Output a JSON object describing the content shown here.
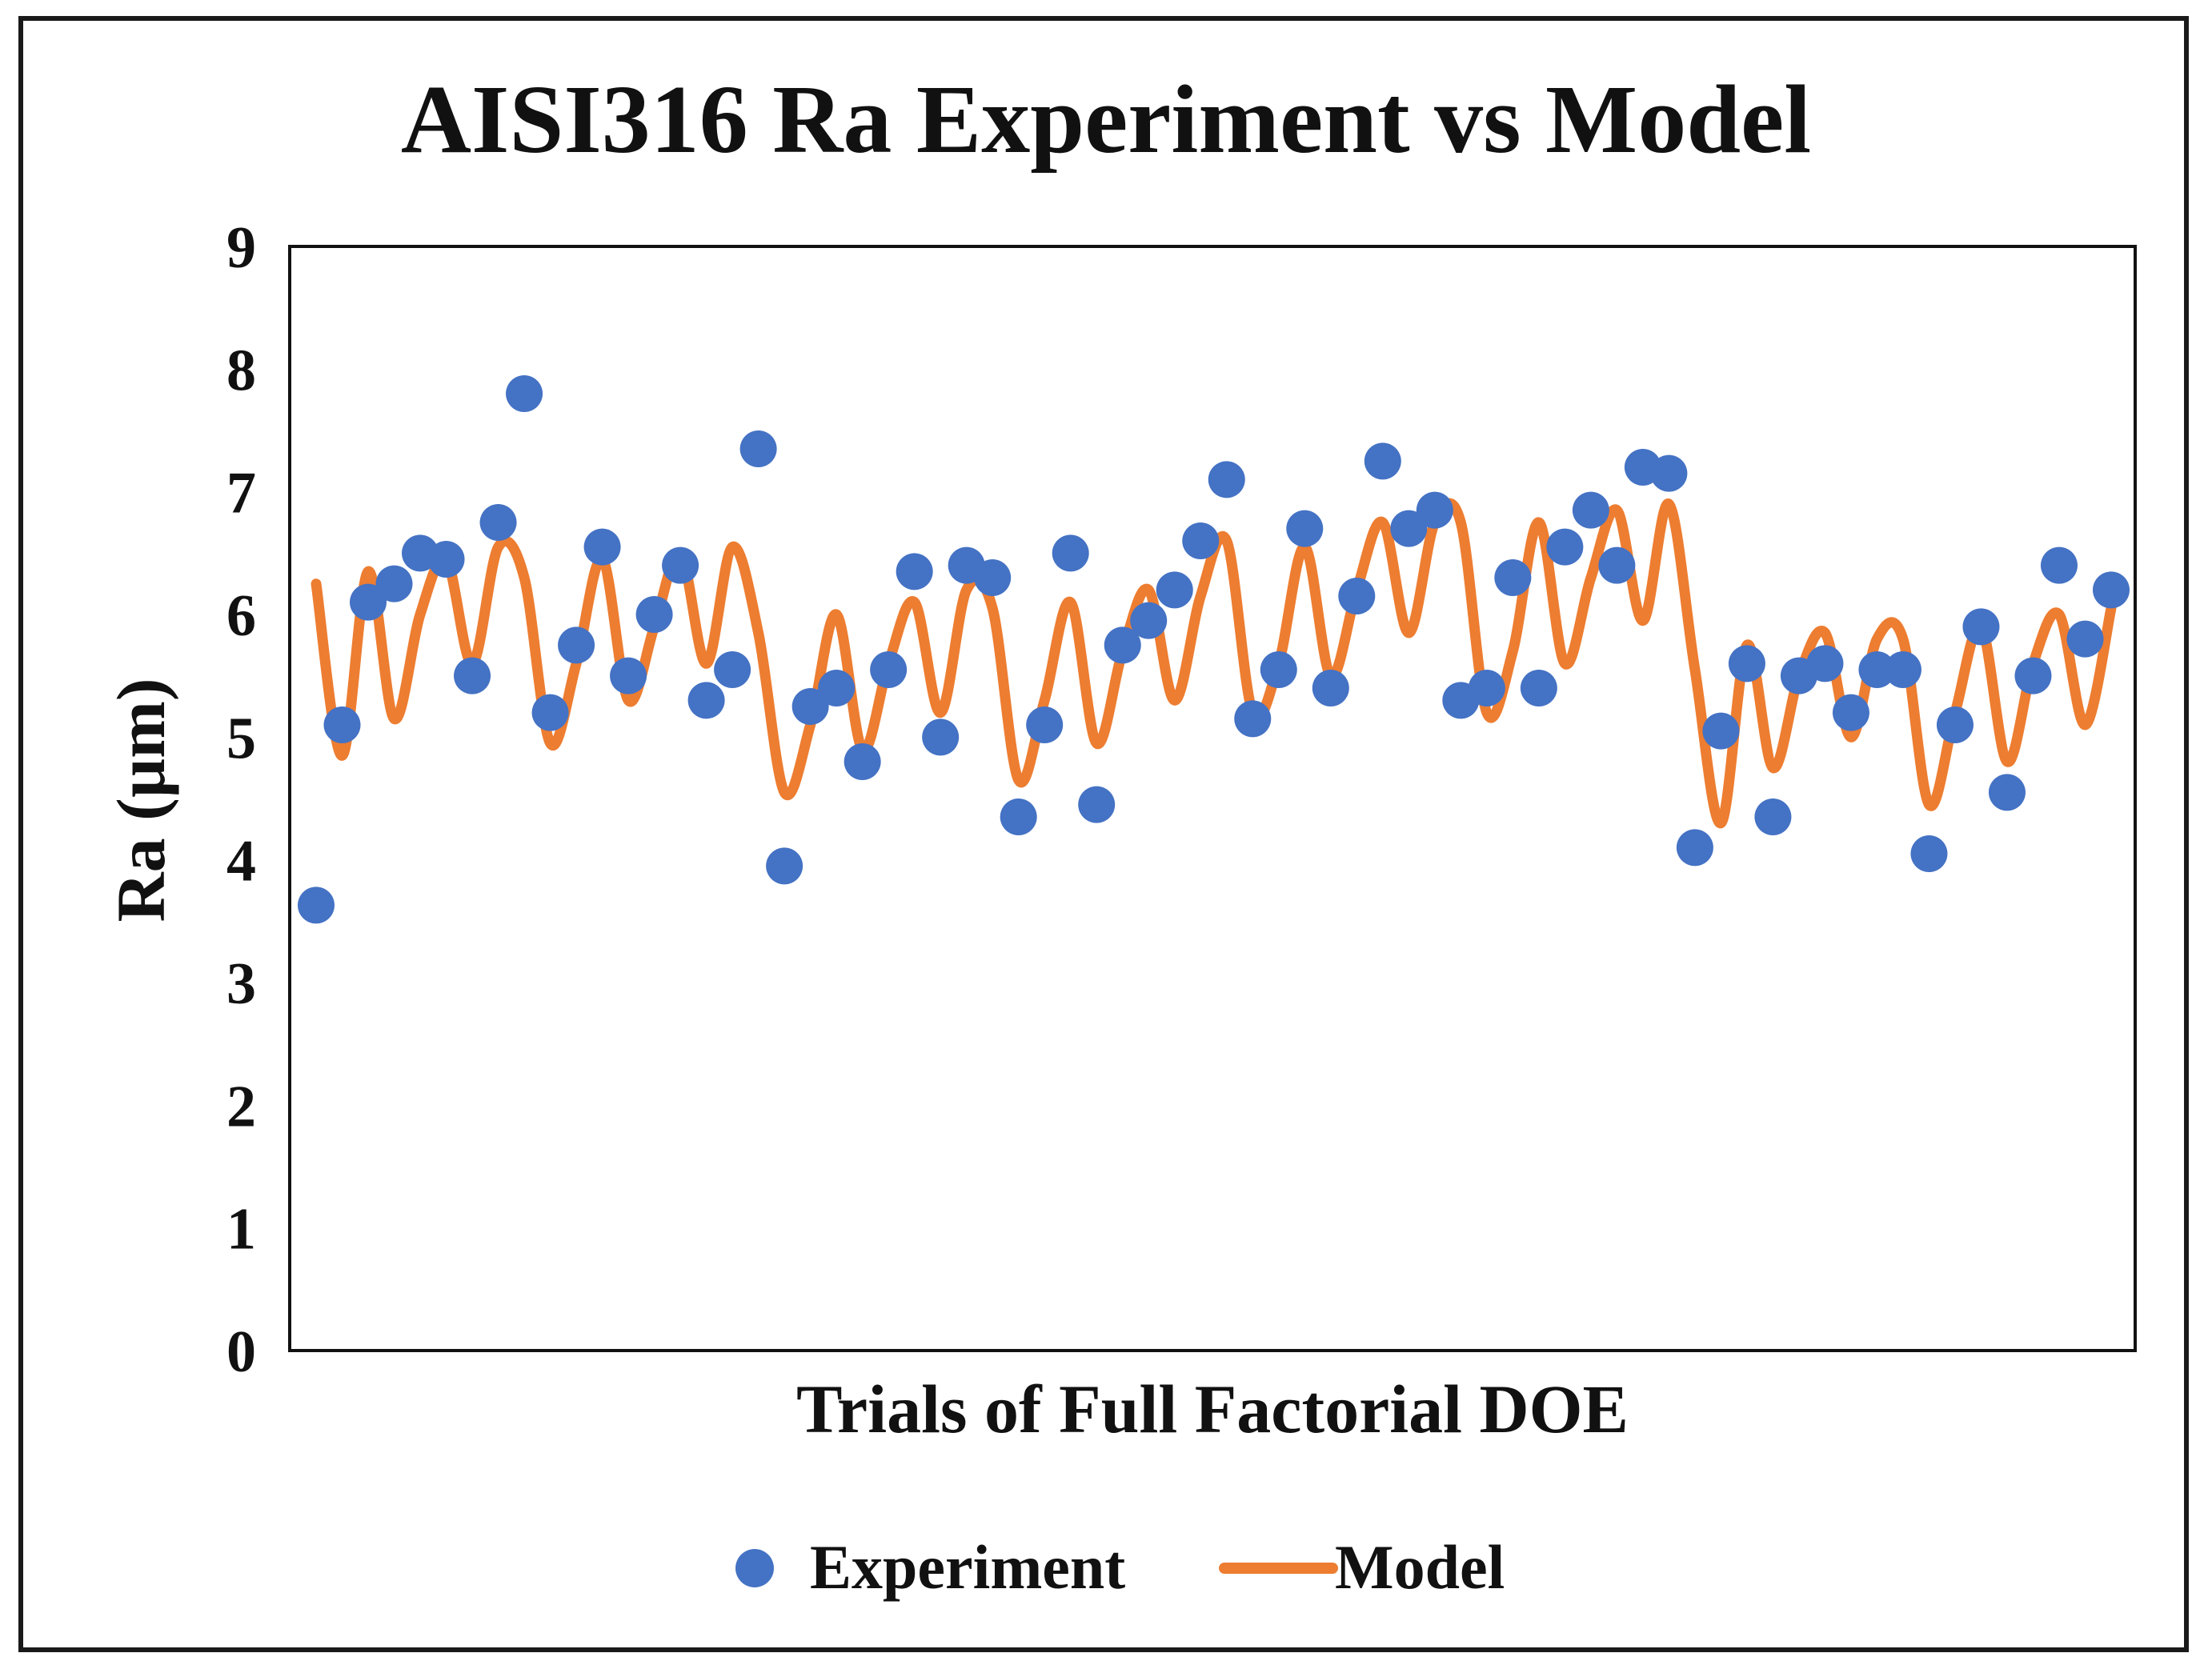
{
  "chart_data": {
    "type": "scatter",
    "title": "AISI316 Ra Experiment vs Model",
    "xlabel": "Trials of Full Factorial DOE",
    "ylabel": "Ra (µm)",
    "ylim": [
      0,
      9
    ],
    "yticks": [
      "0",
      "1",
      "2",
      "3",
      "4",
      "5",
      "6",
      "7",
      "8",
      "9"
    ],
    "colors": {
      "experiment": "#4472C4",
      "model": "#ED7D31"
    },
    "legend": {
      "position": "bottom",
      "experiment_label": "Experiment",
      "model_label": "Model"
    },
    "series": [
      {
        "name": "Experiment",
        "kind": "scatter",
        "values": [
          3.63,
          5.1,
          6.1,
          6.25,
          6.5,
          6.45,
          5.5,
          6.75,
          7.8,
          5.2,
          5.75,
          6.55,
          5.5,
          6.0,
          6.4,
          5.3,
          5.55,
          7.35,
          3.95,
          5.25,
          5.4,
          4.8,
          5.55,
          6.35,
          5.0,
          6.4,
          6.3,
          4.35,
          5.1,
          6.5,
          4.45,
          5.75,
          5.95,
          6.2,
          6.6,
          7.1,
          5.15,
          5.55,
          6.7,
          5.4,
          6.15,
          7.25,
          6.7,
          6.85,
          5.3,
          5.4,
          6.3,
          5.4,
          6.55,
          6.85,
          6.4,
          7.2,
          7.15,
          4.1,
          5.05,
          5.6,
          4.35,
          5.5,
          5.6,
          5.2,
          5.55,
          5.55,
          4.05,
          5.1,
          5.9,
          4.55,
          5.5,
          6.4,
          5.8,
          6.2
        ]
      },
      {
        "name": "Model",
        "kind": "line",
        "values": [
          6.25,
          4.85,
          6.35,
          5.15,
          6.0,
          6.45,
          5.6,
          6.55,
          6.3,
          4.95,
          5.6,
          6.45,
          5.3,
          5.9,
          6.5,
          5.6,
          6.55,
          5.85,
          4.55,
          5.1,
          6.0,
          4.9,
          5.6,
          6.1,
          5.2,
          6.2,
          6.05,
          4.65,
          5.3,
          6.1,
          4.95,
          5.7,
          6.2,
          5.3,
          6.15,
          6.6,
          5.2,
          5.6,
          6.55,
          5.5,
          6.2,
          6.75,
          5.85,
          6.75,
          6.75,
          5.2,
          5.7,
          6.75,
          5.6,
          6.3,
          6.85,
          5.95,
          6.9,
          5.55,
          4.3,
          5.75,
          4.75,
          5.5,
          5.85,
          5.0,
          5.8,
          5.8,
          4.45,
          5.2,
          5.9,
          4.8,
          5.6,
          6.0,
          5.1,
          6.05
        ]
      }
    ]
  }
}
